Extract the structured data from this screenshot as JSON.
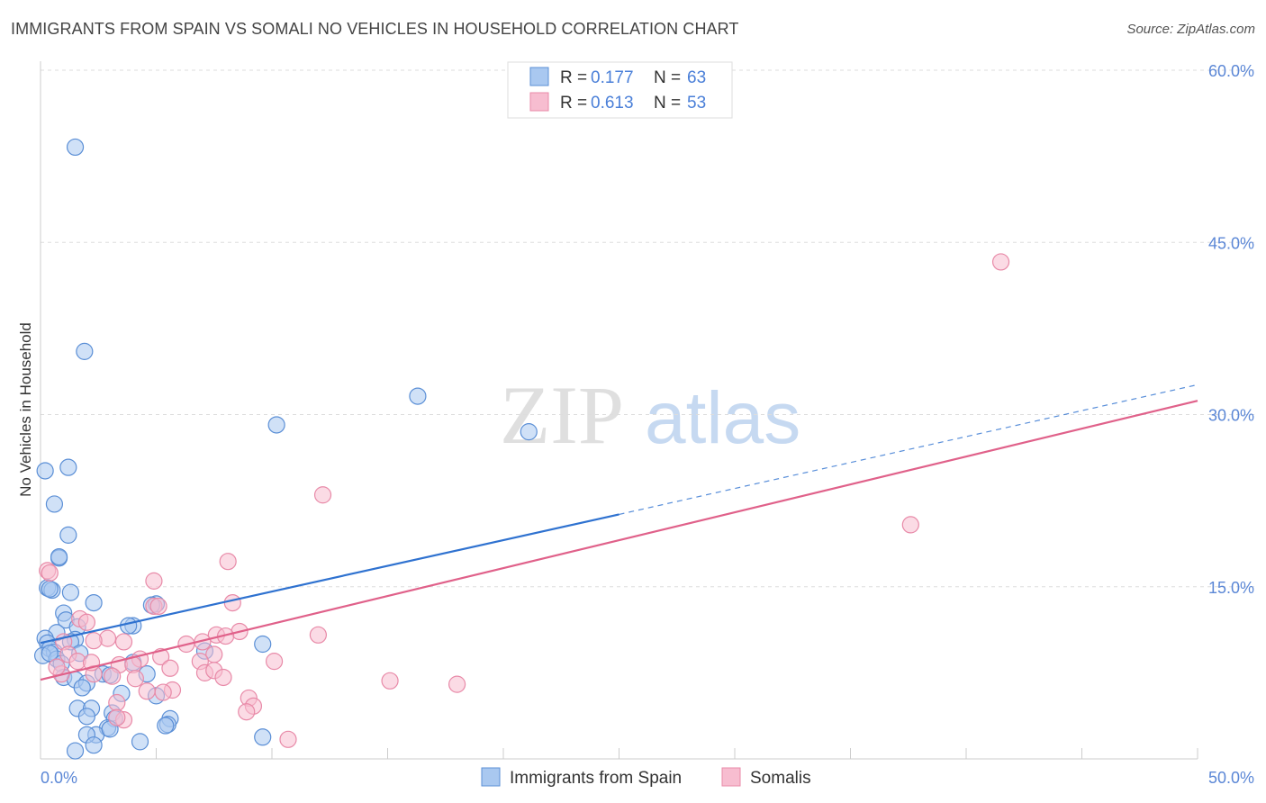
{
  "header": {
    "title": "IMMIGRANTS FROM SPAIN VS SOMALI NO VEHICLES IN HOUSEHOLD CORRELATION CHART",
    "source": "Source: ZipAtlas.com"
  },
  "watermark": {
    "zip": "ZIP",
    "atlas": "atlas"
  },
  "colors": {
    "blue_fill": "#a9c8f0",
    "blue_stroke": "#5b8fd6",
    "blue_line": "#2f72d0",
    "pink_fill": "#f7bdd0",
    "pink_stroke": "#e88aa8",
    "pink_line": "#e0618a",
    "tick_label": "#5b87d6",
    "grid": "#dddddd"
  },
  "legend": {
    "items": [
      {
        "r_label": "R = ",
        "r_value": "0.177",
        "n_label": "N = ",
        "n_value": "63"
      },
      {
        "r_label": "R = ",
        "r_value": "0.613",
        "n_label": "N = ",
        "n_value": "53"
      }
    ]
  },
  "bottom_legend": {
    "series1": "Immigrants from Spain",
    "series2": "Somalis"
  },
  "chart_data": {
    "type": "scatter",
    "title": "IMMIGRANTS FROM SPAIN VS SOMALI NO VEHICLES IN HOUSEHOLD CORRELATION CHART",
    "xlabel": "",
    "ylabel": "No Vehicles in Household",
    "xlim": [
      0,
      50
    ],
    "ylim": [
      0,
      60
    ],
    "x_tick_labels": [
      "0.0%",
      "50.0%"
    ],
    "y_ticks": [
      15,
      30,
      45,
      60
    ],
    "y_tick_labels": [
      "15.0%",
      "30.0%",
      "45.0%",
      "60.0%"
    ],
    "series": [
      {
        "name": "Immigrants from Spain",
        "R": 0.177,
        "N": 63,
        "trend": {
          "x0": 0,
          "y0": 10.1,
          "x1": 25,
          "y1": 21.3,
          "dashed_to_x": 50,
          "dashed_to_y": 32.6
        },
        "points": [
          [
            1.5,
            53.3
          ],
          [
            1.9,
            35.5
          ],
          [
            16.3,
            31.6
          ],
          [
            10.2,
            29.1
          ],
          [
            21.1,
            28.5
          ],
          [
            0.2,
            25.1
          ],
          [
            1.2,
            25.4
          ],
          [
            0.6,
            22.2
          ],
          [
            1.2,
            19.5
          ],
          [
            0.8,
            17.5
          ],
          [
            0.8,
            17.6
          ],
          [
            0.3,
            14.9
          ],
          [
            0.5,
            14.7
          ],
          [
            0.4,
            14.8
          ],
          [
            2.3,
            13.6
          ],
          [
            1.3,
            14.5
          ],
          [
            5.0,
            13.5
          ],
          [
            4.8,
            13.4
          ],
          [
            1.0,
            12.7
          ],
          [
            1.1,
            12.1
          ],
          [
            1.6,
            11.5
          ],
          [
            4.0,
            11.6
          ],
          [
            3.8,
            11.6
          ],
          [
            0.7,
            11.0
          ],
          [
            0.2,
            10.5
          ],
          [
            0.3,
            10.1
          ],
          [
            1.5,
            10.4
          ],
          [
            1.3,
            10.2
          ],
          [
            9.6,
            10.0
          ],
          [
            0.4,
            9.6
          ],
          [
            7.1,
            9.4
          ],
          [
            1.7,
            9.2
          ],
          [
            0.6,
            9.3
          ],
          [
            0.1,
            9.0
          ],
          [
            0.7,
            8.7
          ],
          [
            0.9,
            8.3
          ],
          [
            4.0,
            8.4
          ],
          [
            4.6,
            7.4
          ],
          [
            2.7,
            7.4
          ],
          [
            3.0,
            7.3
          ],
          [
            1.0,
            7.1
          ],
          [
            1.5,
            6.9
          ],
          [
            2.0,
            6.6
          ],
          [
            1.8,
            6.2
          ],
          [
            3.5,
            5.7
          ],
          [
            5.0,
            5.5
          ],
          [
            1.6,
            4.4
          ],
          [
            2.2,
            4.4
          ],
          [
            3.1,
            4.0
          ],
          [
            2.0,
            3.7
          ],
          [
            3.2,
            3.5
          ],
          [
            5.6,
            3.5
          ],
          [
            5.5,
            3.0
          ],
          [
            5.4,
            2.9
          ],
          [
            2.9,
            2.7
          ],
          [
            2.4,
            2.1
          ],
          [
            3.0,
            2.6
          ],
          [
            2.0,
            2.1
          ],
          [
            9.6,
            1.9
          ],
          [
            4.3,
            1.5
          ],
          [
            2.3,
            1.2
          ],
          [
            1.5,
            0.7
          ],
          [
            0.4,
            9.2
          ]
        ]
      },
      {
        "name": "Somalis",
        "R": 0.613,
        "N": 53,
        "trend": {
          "x0": 0,
          "y0": 6.9,
          "x1": 50,
          "y1": 31.2
        },
        "points": [
          [
            41.5,
            43.3
          ],
          [
            12.2,
            23.0
          ],
          [
            37.6,
            20.4
          ],
          [
            8.1,
            17.2
          ],
          [
            4.9,
            15.5
          ],
          [
            0.3,
            16.4
          ],
          [
            0.4,
            16.2
          ],
          [
            8.3,
            13.6
          ],
          [
            4.9,
            13.3
          ],
          [
            5.1,
            13.3
          ],
          [
            1.7,
            12.2
          ],
          [
            2.0,
            11.9
          ],
          [
            8.6,
            11.1
          ],
          [
            7.6,
            10.8
          ],
          [
            8.0,
            10.7
          ],
          [
            12.0,
            10.8
          ],
          [
            2.9,
            10.5
          ],
          [
            2.3,
            10.3
          ],
          [
            3.6,
            10.2
          ],
          [
            6.3,
            10.0
          ],
          [
            1.0,
            10.2
          ],
          [
            7.0,
            10.2
          ],
          [
            1.2,
            9.1
          ],
          [
            5.2,
            8.9
          ],
          [
            4.3,
            8.7
          ],
          [
            7.5,
            9.1
          ],
          [
            1.6,
            8.5
          ],
          [
            3.4,
            8.2
          ],
          [
            6.9,
            8.5
          ],
          [
            10.1,
            8.5
          ],
          [
            4.0,
            8.2
          ],
          [
            5.6,
            7.9
          ],
          [
            7.1,
            7.5
          ],
          [
            7.5,
            7.7
          ],
          [
            0.9,
            7.4
          ],
          [
            3.1,
            7.2
          ],
          [
            2.3,
            7.4
          ],
          [
            7.9,
            7.1
          ],
          [
            4.1,
            7.0
          ],
          [
            15.1,
            6.8
          ],
          [
            18.0,
            6.5
          ],
          [
            5.7,
            6.0
          ],
          [
            4.6,
            5.9
          ],
          [
            5.3,
            5.8
          ],
          [
            9.0,
            5.3
          ],
          [
            3.3,
            4.9
          ],
          [
            9.2,
            4.6
          ],
          [
            8.9,
            4.1
          ],
          [
            3.6,
            3.4
          ],
          [
            3.3,
            3.6
          ],
          [
            10.7,
            1.7
          ],
          [
            0.7,
            8.0
          ],
          [
            2.2,
            8.4
          ]
        ]
      }
    ]
  }
}
